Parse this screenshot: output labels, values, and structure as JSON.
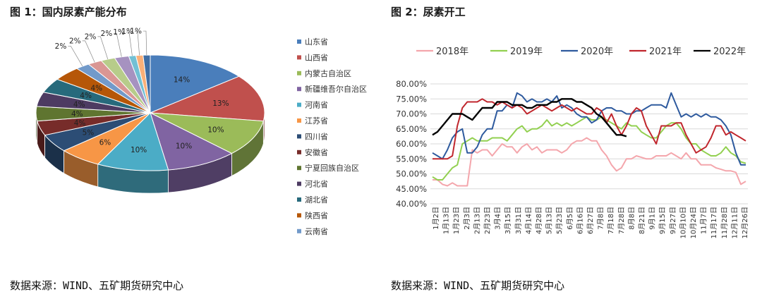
{
  "left": {
    "title": "图 1：国内尿素产能分布",
    "source": "数据来源：WIND、五矿期货研究中心"
  },
  "right": {
    "title": "图 2：尿素开工",
    "source": "数据来源：WIND、五矿期货研究中心"
  },
  "chart_data": [
    {
      "type": "pie",
      "title": "",
      "categories": [
        "山东省",
        "山西省",
        "内蒙古自治区",
        "新疆维吾尔自治区",
        "河南省",
        "江苏省",
        "四川省",
        "安徽省",
        "宁夏回族自治区",
        "河北省",
        "湖北省",
        "陕西省",
        "云南省",
        "",
        "",
        "",
        "",
        "",
        ""
      ],
      "values": [
        14,
        13,
        10,
        10,
        10,
        6,
        5,
        4,
        4,
        4,
        4,
        4,
        2,
        2,
        2,
        2,
        1,
        1,
        1
      ],
      "value_labels": [
        "14%",
        "13%",
        "10%",
        "10%",
        "10%",
        "6%",
        "5%",
        "4%",
        "4%",
        "4%",
        "4%",
        "4%",
        "2%",
        "2%",
        "2%",
        "2%",
        "1%",
        "1%",
        "1%"
      ],
      "colors": [
        "#4a7ebb",
        "#c0504d",
        "#9bbb59",
        "#8064a2",
        "#4bacc6",
        "#f79646",
        "#2c4d75",
        "#772c2a",
        "#5f7530",
        "#4d3b62",
        "#276a7c",
        "#b65708",
        "#729aca",
        "#d99694",
        "#b7cc8a",
        "#a692c0",
        "#72c0d4",
        "#fab078",
        "#3f6da3"
      ],
      "legend_position": "right"
    },
    {
      "type": "line",
      "title": "",
      "xlabel": "",
      "ylabel": "",
      "ylim": [
        40,
        80
      ],
      "yticks": [
        "40.00%",
        "45.00%",
        "50.00%",
        "55.00%",
        "60.00%",
        "65.00%",
        "70.00%",
        "75.00%",
        "80.00%"
      ],
      "x_tick_labels": [
        "1月2日",
        "1月13日",
        "1月23日",
        "2月3日",
        "2月13日",
        "2月23日",
        "3月4日",
        "3月15日",
        "3月31日",
        "4月14日",
        "4月28日",
        "5月13日",
        "5月23日",
        "6月5日",
        "6月16日",
        "6月27日",
        "7月8日",
        "7月18日",
        "7月28日",
        "8月8日",
        "8月21日",
        "9月1日",
        "9月15日",
        "9月27日",
        "10月10日",
        "10月24日",
        "11月7日",
        "11月17日",
        "11月28日",
        "12月11日",
        "12月26日"
      ],
      "grid": true,
      "legend_position": "top",
      "series": [
        {
          "name": "2018年",
          "color": "#f4a6ac",
          "values": [
            48,
            48,
            46.5,
            46,
            47,
            46,
            46,
            46,
            58,
            57,
            58,
            58,
            56,
            58,
            60,
            59,
            59,
            57,
            59,
            60,
            58,
            59,
            57,
            58,
            58,
            58,
            57,
            58,
            60,
            61,
            61,
            62,
            61,
            61,
            58,
            56,
            53,
            51,
            52,
            55,
            55,
            56,
            55.5,
            55,
            55,
            56,
            56,
            56,
            57,
            56,
            55,
            57,
            55,
            55,
            53,
            53,
            53,
            52,
            51.5,
            51,
            51,
            50.5,
            46.5,
            47.5
          ]
        },
        {
          "name": "2019年",
          "color": "#92d050",
          "values": [
            49,
            48,
            48,
            50,
            52,
            53,
            60,
            61,
            62,
            61,
            61,
            61,
            62,
            62,
            62,
            61,
            63,
            65,
            66,
            64,
            65,
            65,
            66,
            68,
            66,
            67,
            66,
            67,
            66,
            67,
            68,
            69,
            68,
            68,
            69,
            68,
            67,
            66,
            65,
            67,
            66,
            66,
            64,
            63,
            62,
            62,
            64,
            66,
            67,
            67,
            65,
            62,
            60,
            60,
            58,
            57,
            56,
            56,
            57,
            59,
            57,
            56,
            54,
            53.5
          ]
        },
        {
          "name": "2020年",
          "color": "#2e5a9e",
          "values": [
            57,
            56,
            55,
            58,
            62,
            64,
            65,
            57,
            57,
            59,
            63,
            65,
            65,
            71,
            71,
            73,
            72,
            77,
            76,
            74,
            75,
            74,
            74,
            75,
            74,
            76,
            72,
            73,
            72,
            70,
            69,
            69,
            67,
            68,
            71,
            72,
            72,
            71,
            71,
            70,
            70,
            71,
            71,
            72,
            73,
            73,
            73,
            72,
            77,
            73,
            69,
            70,
            69,
            70,
            69,
            70,
            69,
            69,
            68,
            66,
            63,
            57,
            53,
            53
          ]
        },
        {
          "name": "2021年",
          "color": "#c0262d",
          "values": [
            55,
            55,
            55,
            55,
            56,
            66,
            72,
            74,
            74,
            74,
            75,
            74,
            74,
            73,
            74,
            73,
            72,
            73,
            72,
            70,
            71,
            72,
            73,
            72,
            71,
            72,
            73,
            72,
            71,
            72,
            71,
            70,
            70,
            72,
            71,
            67,
            70,
            66,
            63,
            66,
            70,
            72,
            71,
            66,
            63,
            60,
            66,
            66,
            66,
            67,
            67,
            63,
            60,
            57,
            58,
            59,
            62,
            66,
            66,
            63,
            64,
            63,
            62,
            61
          ]
        },
        {
          "name": "2022年",
          "color": "#000000",
          "values": [
            63,
            64,
            66,
            68,
            70,
            70,
            70,
            69,
            68,
            70,
            72,
            72,
            72,
            74,
            74,
            74,
            73,
            73,
            73,
            72,
            72,
            73,
            73,
            73,
            74,
            74,
            75,
            75,
            75,
            74,
            74,
            73,
            72,
            70,
            69,
            67,
            65,
            63,
            63,
            62.5
          ]
        }
      ]
    }
  ]
}
